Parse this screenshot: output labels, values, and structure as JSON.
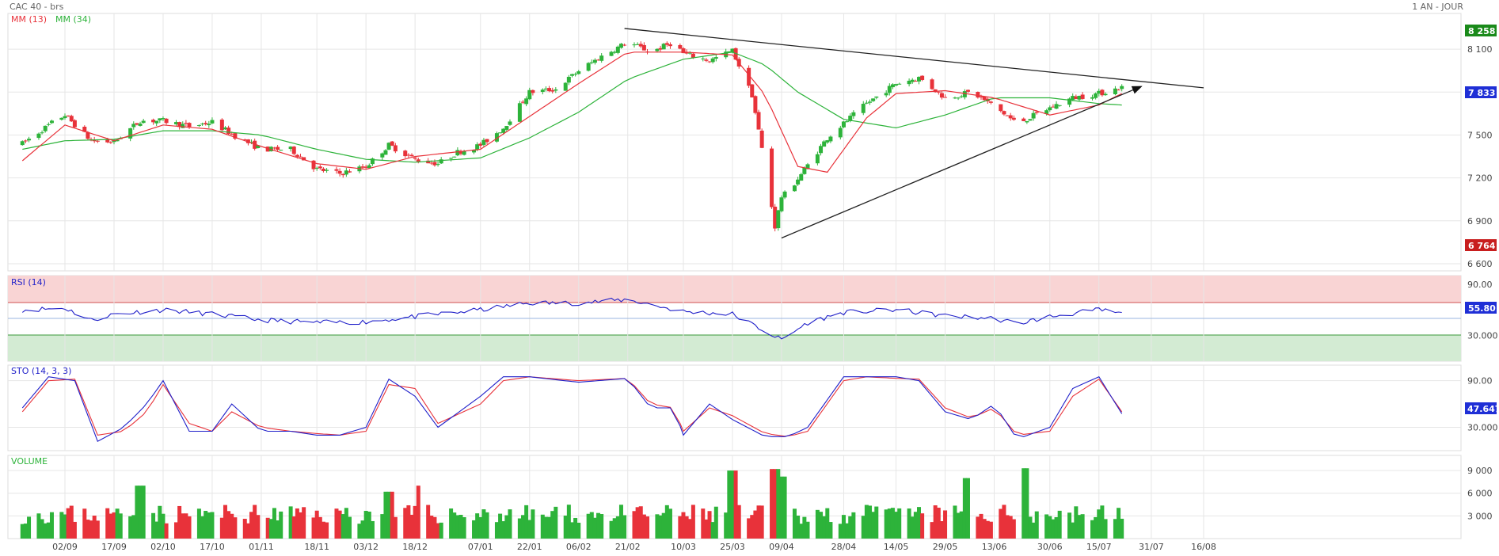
{
  "header": {
    "title": "CAC 40 - brs",
    "period": "1 AN - JOUR"
  },
  "colors": {
    "up": "#2db33a",
    "down": "#e8323a",
    "ma_short": "#e8323a",
    "ma_long": "#2db33a",
    "rsi": "#1f1fc9",
    "sto_k": "#1f1fc9",
    "sto_d": "#e8323a",
    "badge_high": "#1a8a1a",
    "badge_last": "#1f2fd6",
    "badge_low": "#c81e1e",
    "grid": "#e6e6e6",
    "overbought": "#f9d4d4",
    "oversold": "#d3ebd3"
  },
  "chart_data": [
    {
      "type": "candlestick",
      "title": "CAC 40 - brs",
      "legend": [
        {
          "name": "MM (13)"
        },
        {
          "name": "MM (34)"
        }
      ],
      "y_ticks": [
        "6 600",
        "6 900",
        "7 200",
        "7 500",
        "8 100"
      ],
      "ylim": [
        6550,
        8350
      ],
      "x_ticks": [
        "02/09",
        "17/09",
        "02/10",
        "17/10",
        "01/11",
        "18/11",
        "03/12",
        "18/12",
        "07/01",
        "22/01",
        "06/02",
        "21/02",
        "10/03",
        "25/03",
        "09/04",
        "28/04",
        "14/05",
        "29/05",
        "13/06",
        "30/06",
        "15/07",
        "31/07",
        "16/08"
      ],
      "markers": {
        "high": "8 258",
        "last": "7 833",
        "low": "6 764"
      },
      "trendlines": [
        {
          "from": [
            "20/02",
            8245
          ],
          "to": [
            "16/08",
            7830
          ]
        },
        {
          "from": [
            "09/04",
            6780
          ],
          "to": [
            "28/07",
            7840
          ]
        }
      ],
      "anchors": [
        [
          "20/08",
          7440
        ],
        [
          "30/08",
          7600
        ],
        [
          "02/09",
          7640
        ],
        [
          "10/09",
          7460
        ],
        [
          "17/09",
          7450
        ],
        [
          "25/09",
          7600
        ],
        [
          "02/10",
          7600
        ],
        [
          "10/10",
          7560
        ],
        [
          "17/10",
          7590
        ],
        [
          "25/10",
          7480
        ],
        [
          "01/11",
          7400
        ],
        [
          "10/11",
          7400
        ],
        [
          "18/11",
          7260
        ],
        [
          "25/11",
          7230
        ],
        [
          "03/12",
          7280
        ],
        [
          "10/12",
          7430
        ],
        [
          "18/12",
          7330
        ],
        [
          "25/12",
          7300
        ],
        [
          "31/12",
          7380
        ],
        [
          "07/01",
          7430
        ],
        [
          "14/01",
          7550
        ],
        [
          "22/01",
          7800
        ],
        [
          "30/01",
          7820
        ],
        [
          "06/02",
          7950
        ],
        [
          "13/02",
          8050
        ],
        [
          "21/02",
          8150
        ],
        [
          "28/02",
          8080
        ],
        [
          "07/03",
          8150
        ],
        [
          "10/03",
          8070
        ],
        [
          "18/03",
          8020
        ],
        [
          "25/03",
          8090
        ],
        [
          "31/03",
          7780
        ],
        [
          "04/04",
          7280
        ],
        [
          "07/04",
          6860
        ],
        [
          "09/04",
          7070
        ],
        [
          "11/04",
          7100
        ],
        [
          "17/04",
          7290
        ],
        [
          "23/04",
          7480
        ],
        [
          "28/04",
          7580
        ],
        [
          "05/05",
          7720
        ],
        [
          "14/05",
          7860
        ],
        [
          "21/05",
          7900
        ],
        [
          "29/05",
          7760
        ],
        [
          "06/06",
          7800
        ],
        [
          "13/06",
          7700
        ],
        [
          "20/06",
          7580
        ],
        [
          "30/06",
          7690
        ],
        [
          "07/07",
          7760
        ],
        [
          "15/07",
          7790
        ],
        [
          "22/07",
          7833
        ]
      ],
      "ma13_anchors": [
        [
          "20/08",
          7320
        ],
        [
          "02/09",
          7570
        ],
        [
          "17/09",
          7460
        ],
        [
          "02/10",
          7570
        ],
        [
          "17/10",
          7540
        ],
        [
          "01/11",
          7420
        ],
        [
          "18/11",
          7300
        ],
        [
          "03/12",
          7260
        ],
        [
          "18/12",
          7350
        ],
        [
          "07/01",
          7400
        ],
        [
          "22/01",
          7630
        ],
        [
          "06/02",
          7860
        ],
        [
          "21/02",
          8080
        ],
        [
          "10/03",
          8080
        ],
        [
          "25/03",
          8060
        ],
        [
          "04/04",
          7780
        ],
        [
          "14/04",
          7280
        ],
        [
          "23/04",
          7240
        ],
        [
          "05/05",
          7620
        ],
        [
          "14/05",
          7790
        ],
        [
          "29/05",
          7810
        ],
        [
          "13/06",
          7760
        ],
        [
          "30/06",
          7640
        ],
        [
          "15/07",
          7710
        ],
        [
          "22/07",
          7790
        ]
      ],
      "ma34_anchors": [
        [
          "20/08",
          7400
        ],
        [
          "02/09",
          7460
        ],
        [
          "17/09",
          7470
        ],
        [
          "02/10",
          7530
        ],
        [
          "17/10",
          7530
        ],
        [
          "01/11",
          7500
        ],
        [
          "18/11",
          7400
        ],
        [
          "03/12",
          7330
        ],
        [
          "18/12",
          7310
        ],
        [
          "07/01",
          7340
        ],
        [
          "22/01",
          7480
        ],
        [
          "06/02",
          7660
        ],
        [
          "21/02",
          7890
        ],
        [
          "10/03",
          8030
        ],
        [
          "25/03",
          8080
        ],
        [
          "04/04",
          7990
        ],
        [
          "14/04",
          7800
        ],
        [
          "28/04",
          7610
        ],
        [
          "14/05",
          7550
        ],
        [
          "29/05",
          7640
        ],
        [
          "13/06",
          7760
        ],
        [
          "30/06",
          7760
        ],
        [
          "15/07",
          7720
        ],
        [
          "22/07",
          7710
        ]
      ]
    },
    {
      "type": "line",
      "title": "RSI (14)",
      "y_ticks": [
        "90.00",
        "30.000"
      ],
      "ylim": [
        0,
        100
      ],
      "levels": {
        "upper": 70,
        "lower": 30
      },
      "last": "55.80",
      "anchors": [
        [
          "20/08",
          60
        ],
        [
          "02/09",
          62
        ],
        [
          "10/09",
          48
        ],
        [
          "17/09",
          55
        ],
        [
          "02/10",
          60
        ],
        [
          "17/10",
          55
        ],
        [
          "01/11",
          48
        ],
        [
          "18/11",
          45
        ],
        [
          "03/12",
          46
        ],
        [
          "18/12",
          52
        ],
        [
          "07/01",
          60
        ],
        [
          "22/01",
          68
        ],
        [
          "06/02",
          68
        ],
        [
          "21/02",
          72
        ],
        [
          "10/03",
          58
        ],
        [
          "25/03",
          55
        ],
        [
          "04/04",
          35
        ],
        [
          "09/04",
          25
        ],
        [
          "17/04",
          45
        ],
        [
          "28/04",
          57
        ],
        [
          "14/05",
          60
        ],
        [
          "29/05",
          53
        ],
        [
          "13/06",
          50
        ],
        [
          "20/06",
          44
        ],
        [
          "30/06",
          52
        ],
        [
          "15/07",
          60
        ],
        [
          "22/07",
          55.8
        ]
      ]
    },
    {
      "type": "line",
      "title": "STO (14, 3, 3)",
      "y_ticks": [
        "90.00",
        "30.000"
      ],
      "ylim": [
        0,
        110
      ],
      "last": "47.647",
      "anchors_k": [
        [
          "20/08",
          55
        ],
        [
          "28/08",
          95
        ],
        [
          "05/09",
          90
        ],
        [
          "12/09",
          12
        ],
        [
          "20/09",
          30
        ],
        [
          "27/09",
          60
        ],
        [
          "02/10",
          90
        ],
        [
          "10/10",
          25
        ],
        [
          "17/10",
          25
        ],
        [
          "23/10",
          60
        ],
        [
          "01/11",
          25
        ],
        [
          "10/11",
          25
        ],
        [
          "18/11",
          20
        ],
        [
          "25/11",
          20
        ],
        [
          "03/12",
          30
        ],
        [
          "10/12",
          92
        ],
        [
          "18/12",
          70
        ],
        [
          "25/12",
          30
        ],
        [
          "07/01",
          70
        ],
        [
          "14/01",
          95
        ],
        [
          "22/01",
          95
        ],
        [
          "06/02",
          88
        ],
        [
          "21/02",
          93
        ],
        [
          "28/02",
          55
        ],
        [
          "07/03",
          55
        ],
        [
          "10/03",
          20
        ],
        [
          "18/03",
          60
        ],
        [
          "25/03",
          40
        ],
        [
          "04/04",
          18
        ],
        [
          "11/04",
          18
        ],
        [
          "17/04",
          30
        ],
        [
          "28/04",
          95
        ],
        [
          "05/05",
          95
        ],
        [
          "14/05",
          95
        ],
        [
          "21/05",
          90
        ],
        [
          "29/05",
          50
        ],
        [
          "06/06",
          40
        ],
        [
          "13/06",
          60
        ],
        [
          "20/06",
          15
        ],
        [
          "30/06",
          30
        ],
        [
          "07/07",
          80
        ],
        [
          "15/07",
          95
        ],
        [
          "22/07",
          47.6
        ]
      ],
      "anchors_d": [
        [
          "20/08",
          50
        ],
        [
          "28/08",
          90
        ],
        [
          "05/09",
          92
        ],
        [
          "12/09",
          20
        ],
        [
          "20/09",
          25
        ],
        [
          "27/09",
          50
        ],
        [
          "02/10",
          85
        ],
        [
          "10/10",
          35
        ],
        [
          "17/10",
          25
        ],
        [
          "23/10",
          50
        ],
        [
          "01/11",
          30
        ],
        [
          "10/11",
          25
        ],
        [
          "18/11",
          22
        ],
        [
          "25/11",
          20
        ],
        [
          "03/12",
          25
        ],
        [
          "10/12",
          85
        ],
        [
          "18/12",
          80
        ],
        [
          "25/12",
          35
        ],
        [
          "07/01",
          60
        ],
        [
          "14/01",
          90
        ],
        [
          "22/01",
          95
        ],
        [
          "06/02",
          90
        ],
        [
          "21/02",
          93
        ],
        [
          "28/02",
          60
        ],
        [
          "07/03",
          55
        ],
        [
          "10/03",
          25
        ],
        [
          "18/03",
          55
        ],
        [
          "25/03",
          45
        ],
        [
          "04/04",
          22
        ],
        [
          "11/04",
          18
        ],
        [
          "17/04",
          25
        ],
        [
          "28/04",
          90
        ],
        [
          "05/05",
          95
        ],
        [
          "14/05",
          93
        ],
        [
          "21/05",
          92
        ],
        [
          "29/05",
          55
        ],
        [
          "06/06",
          42
        ],
        [
          "13/06",
          55
        ],
        [
          "20/06",
          20
        ],
        [
          "30/06",
          25
        ],
        [
          "07/07",
          70
        ],
        [
          "15/07",
          92
        ],
        [
          "22/07",
          50
        ]
      ]
    },
    {
      "type": "bar",
      "title": "VOLUME",
      "y_ticks": [
        "9 000",
        "6 000",
        "3 000"
      ],
      "ylim": [
        0,
        11000
      ],
      "spikes": [
        [
          "25/09",
          7000
        ],
        [
          "10/12",
          6200
        ],
        [
          "20/12",
          7000
        ],
        [
          "25/03",
          9000
        ],
        [
          "07/04",
          9200
        ],
        [
          "10/04",
          8200
        ],
        [
          "05/06",
          8000
        ],
        [
          "22/06",
          9300
        ]
      ],
      "base_level": 3200
    }
  ]
}
